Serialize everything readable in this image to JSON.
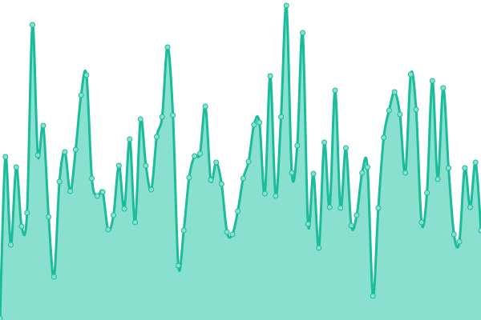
{
  "chart_data": {
    "type": "area",
    "title": "",
    "xlabel": "",
    "ylabel": "",
    "ylim": [
      0,
      400
    ],
    "grid": false,
    "smooth": true,
    "markers": true,
    "colors": {
      "line": "#1abc9c",
      "fill": "#8ae0cf",
      "marker_fill": "#8ae0cf",
      "marker_stroke": "#1abc9c"
    },
    "values": [
      2,
      204,
      94,
      191,
      117,
      134,
      369,
      206,
      243,
      129,
      54,
      173,
      210,
      161,
      213,
      281,
      306,
      177,
      155,
      160,
      113,
      131,
      193,
      139,
      226,
      122,
      251,
      193,
      163,
      229,
      254,
      341,
      256,
      68,
      112,
      178,
      205,
      208,
      267,
      175,
      197,
      170,
      110,
      107,
      136,
      177,
      198,
      244,
      247,
      158,
      305,
      155,
      254,
      393,
      184,
      218,
      359,
      120,
      183,
      90,
      222,
      141,
      287,
      140,
      215,
      118,
      131,
      184,
      191,
      30,
      140,
      228,
      262,
      285,
      257,
      184,
      307,
      263,
      122,
      159,
      299,
      176,
      290,
      190,
      107,
      98,
      190,
      141,
      197,
      112
    ]
  }
}
